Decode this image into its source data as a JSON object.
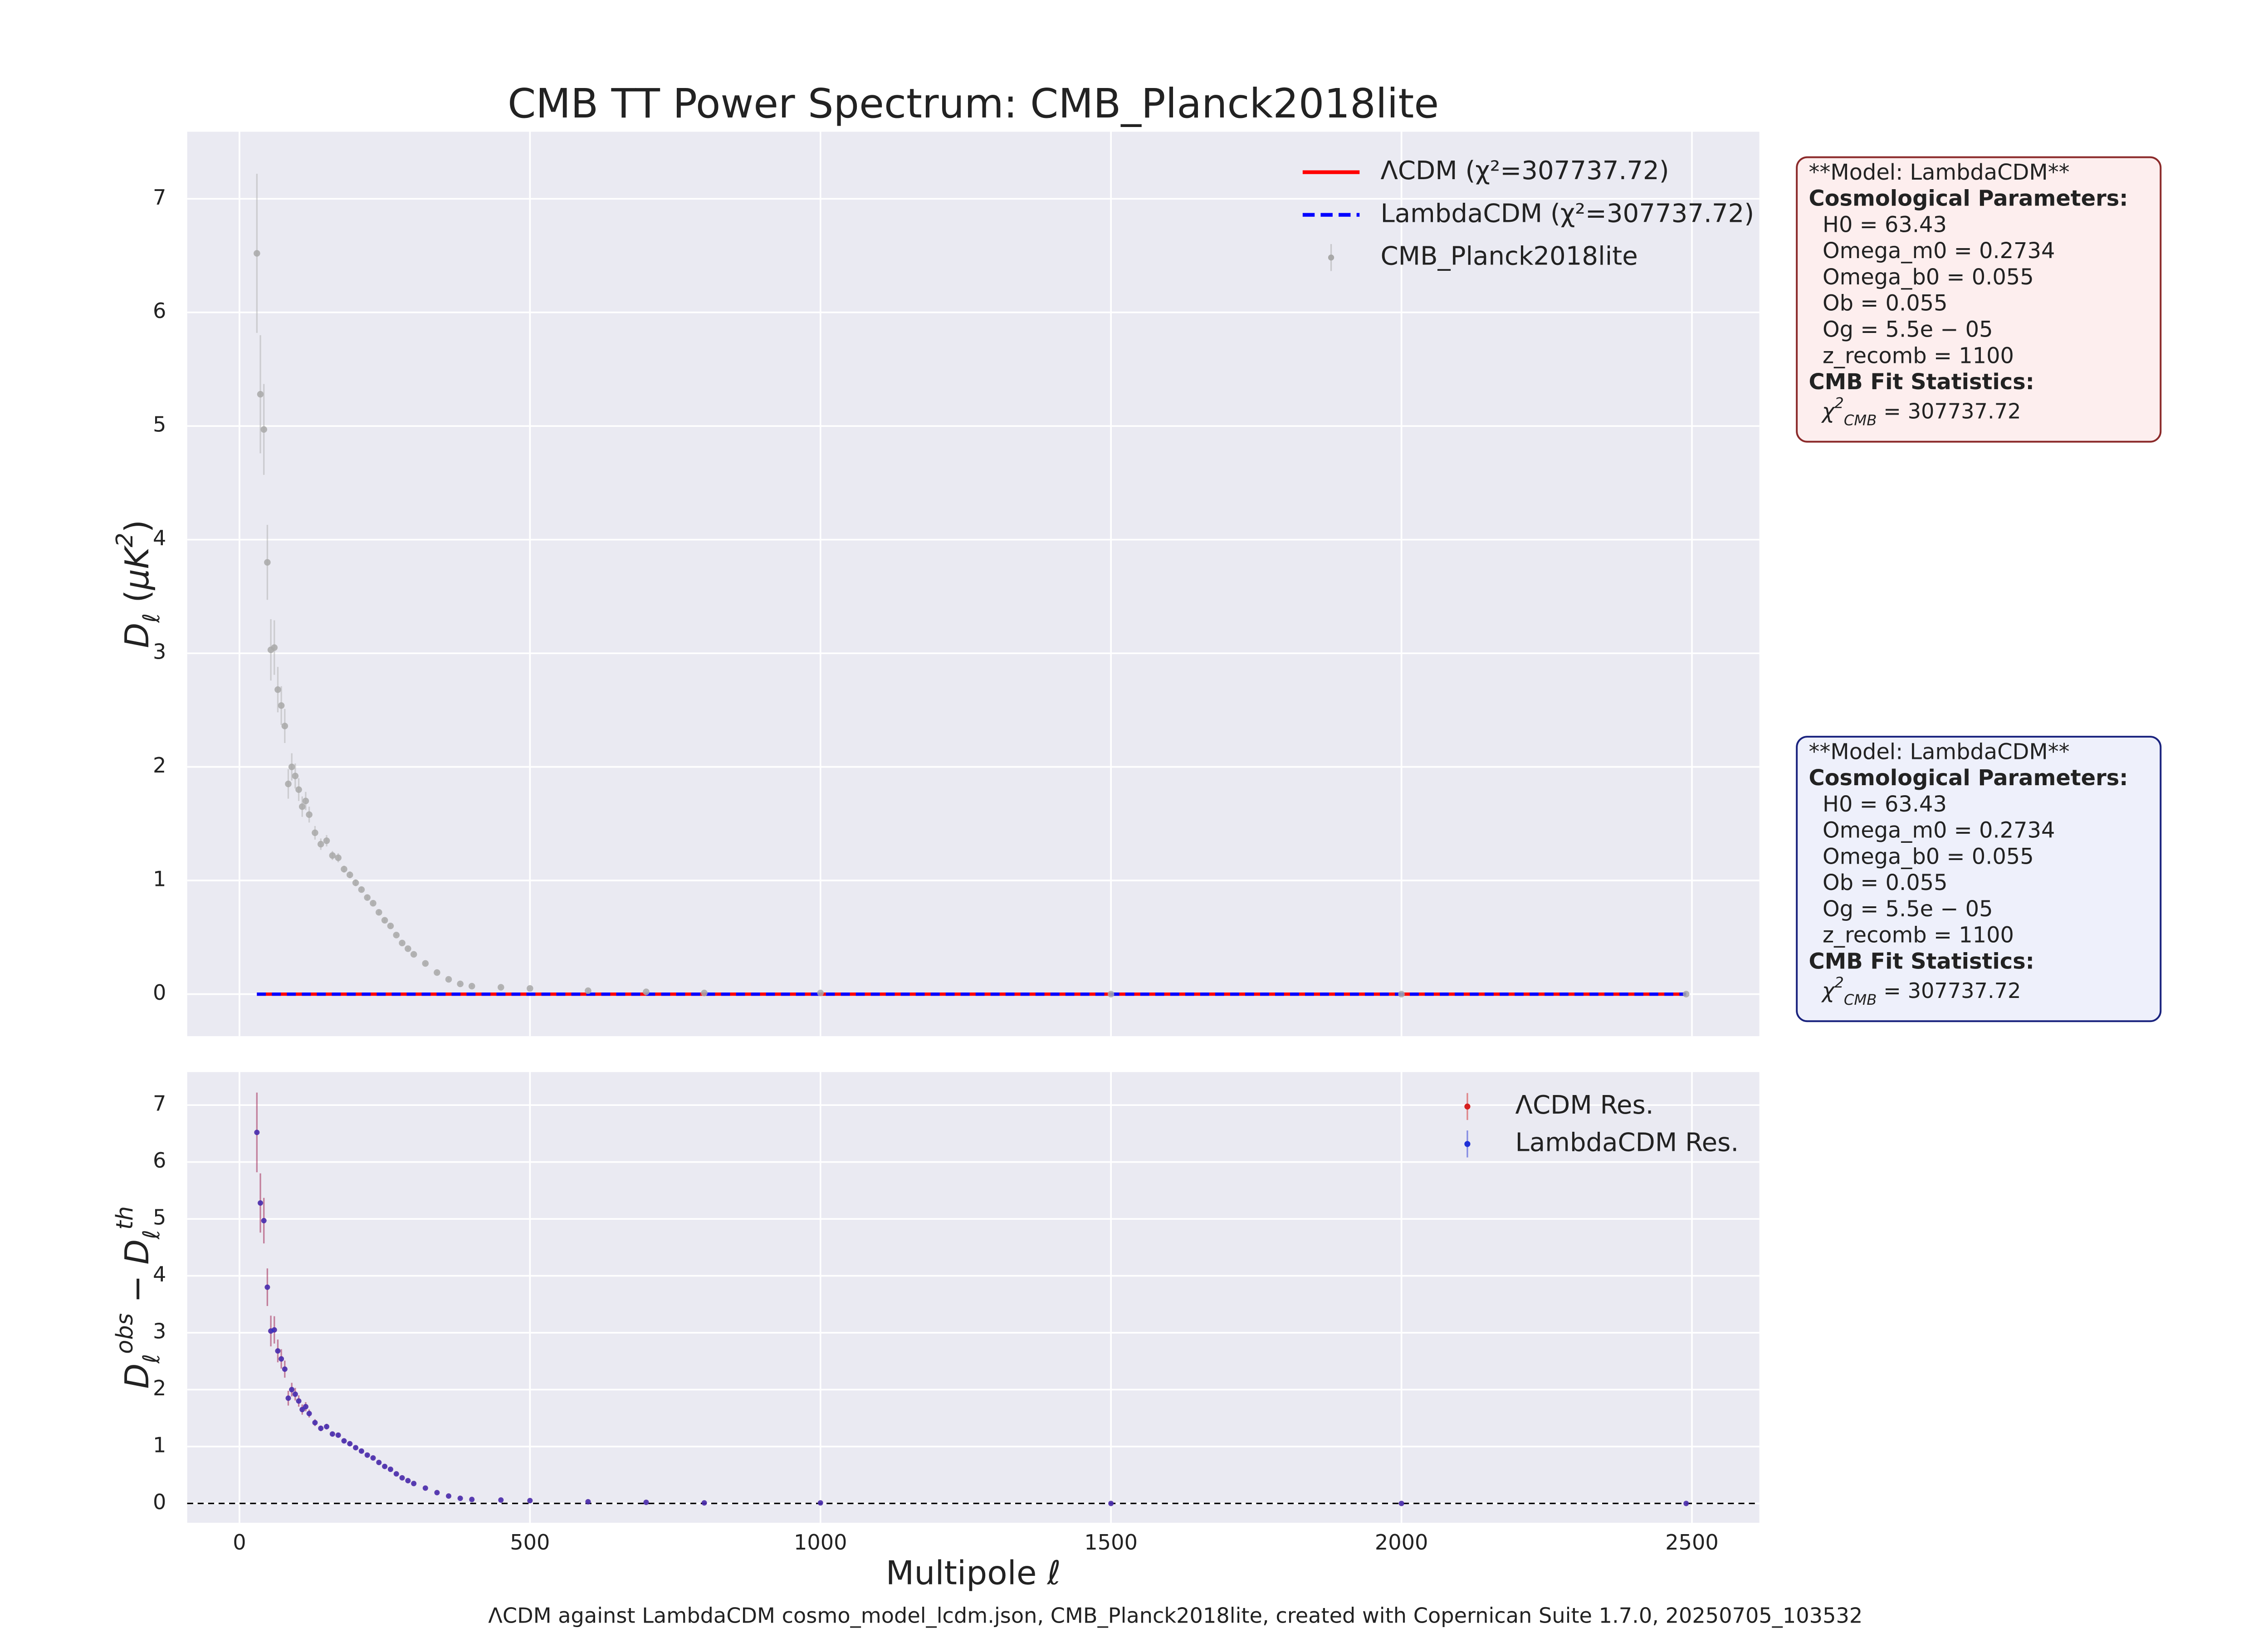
{
  "chart_data": [
    {
      "type": "errorbar",
      "title": "CMB TT Power Spectrum: CMB_Planck2018lite",
      "ylabel_parts": [
        {
          "text": "D",
          "style": "italic"
        },
        {
          "text": "ℓ",
          "style": "sub"
        },
        {
          "text": " (",
          "style": "normal"
        },
        {
          "text": "μK",
          "style": "italic"
        },
        {
          "text": "2",
          "style": "sup"
        },
        {
          "text": ")",
          "style": "normal"
        }
      ],
      "x": [
        30,
        36,
        42,
        48,
        54,
        60,
        66,
        72,
        78,
        84,
        90,
        96,
        102,
        108,
        114,
        120,
        130,
        140,
        150,
        160,
        170,
        180,
        190,
        200,
        210,
        220,
        230,
        240,
        250,
        260,
        270,
        280,
        290,
        300,
        320,
        340,
        360,
        380,
        400,
        450,
        500,
        600,
        700,
        800,
        1000,
        1500,
        2000,
        2490
      ],
      "xlim": [
        -90,
        2616
      ],
      "xticks": [
        0,
        500,
        1000,
        1500,
        2000,
        2500
      ],
      "show_xticklabels": false,
      "ylim": [
        -0.37,
        7.59
      ],
      "yticks": [
        0,
        1,
        2,
        3,
        4,
        5,
        6,
        7
      ],
      "grid": true,
      "legend": "upper right",
      "series": [
        {
          "name": "ΛCDM (χ²=307737.72)",
          "kind": "line",
          "linestyle": "solid",
          "color": "#ff0000",
          "values": [
            0,
            0,
            0,
            0,
            0,
            0,
            0,
            0,
            0,
            0,
            0,
            0,
            0,
            0,
            0,
            0,
            0,
            0,
            0,
            0,
            0,
            0,
            0,
            0,
            0,
            0,
            0,
            0,
            0,
            0,
            0,
            0,
            0,
            0,
            0,
            0,
            0,
            0,
            0,
            0,
            0,
            0,
            0,
            0,
            0,
            0,
            0,
            0
          ]
        },
        {
          "name": "LambdaCDM (χ²=307737.72)",
          "kind": "line",
          "linestyle": "dashed",
          "color": "#0000ff",
          "values": [
            0,
            0,
            0,
            0,
            0,
            0,
            0,
            0,
            0,
            0,
            0,
            0,
            0,
            0,
            0,
            0,
            0,
            0,
            0,
            0,
            0,
            0,
            0,
            0,
            0,
            0,
            0,
            0,
            0,
            0,
            0,
            0,
            0,
            0,
            0,
            0,
            0,
            0,
            0,
            0,
            0,
            0,
            0,
            0,
            0,
            0,
            0,
            0
          ]
        },
        {
          "name": "CMB_Planck2018lite",
          "kind": "errorbar",
          "color": "#a8a8a8",
          "values": [
            6.52,
            5.28,
            4.97,
            3.8,
            3.03,
            3.05,
            2.68,
            2.54,
            2.36,
            1.85,
            2.0,
            1.92,
            1.8,
            1.65,
            1.7,
            1.58,
            1.42,
            1.32,
            1.35,
            1.22,
            1.2,
            1.1,
            1.05,
            0.98,
            0.92,
            0.85,
            0.8,
            0.72,
            0.65,
            0.6,
            0.52,
            0.45,
            0.4,
            0.35,
            0.27,
            0.19,
            0.13,
            0.09,
            0.07,
            0.06,
            0.05,
            0.03,
            0.02,
            0.01,
            0.01,
            0,
            0,
            0
          ],
          "errors": [
            0.7,
            0.52,
            0.4,
            0.33,
            0.27,
            0.24,
            0.2,
            0.17,
            0.15,
            0.13,
            0.12,
            0.11,
            0.1,
            0.09,
            0.08,
            0.07,
            0.06,
            0.05,
            0.05,
            0.04,
            0.04,
            0.03,
            0.03,
            0.03,
            0.02,
            0.02,
            0.02,
            0.02,
            0.02,
            0.02,
            0.01,
            0.01,
            0.01,
            0.01,
            0.01,
            0.01,
            0.01,
            0.01,
            0.01,
            0.01,
            0.01,
            0.01,
            0.01,
            0.01,
            0.01,
            0.01,
            0.01,
            0.01
          ]
        }
      ],
      "annotations": [
        {
          "facecolor": "#fdeeee",
          "edgecolor": "#8b2a2a",
          "lines": [
            {
              "text": "**Model: LambdaCDM**"
            },
            {
              "text": "Cosmological Parameters:",
              "bold": true
            },
            {
              "text": "  H0 = 63.43"
            },
            {
              "text": "  Omega_m0 = 0.2734"
            },
            {
              "text": "  Omega_b0 = 0.055"
            },
            {
              "text": "  Ob = 0.055"
            },
            {
              "text": "  Og = 5.5e − 05"
            },
            {
              "text": "  z_recomb = 1100"
            },
            {
              "text": "CMB Fit Statistics:",
              "bold": true
            },
            {
              "parts": [
                {
                  "text": "  χ",
                  "style": "italic"
                },
                {
                  "text": "2",
                  "style": "sup"
                },
                {
                  "text": "CMB",
                  "style": "sub"
                },
                {
                  "text": " = 307737.72",
                  "style": "normal"
                }
              ]
            }
          ]
        },
        {
          "facecolor": "#eef0fb",
          "edgecolor": "#1a237e",
          "lines": [
            {
              "text": "**Model: LambdaCDM**"
            },
            {
              "text": "Cosmological Parameters:",
              "bold": true
            },
            {
              "text": "  H0 = 63.43"
            },
            {
              "text": "  Omega_m0 = 0.2734"
            },
            {
              "text": "  Omega_b0 = 0.055"
            },
            {
              "text": "  Ob = 0.055"
            },
            {
              "text": "  Og = 5.5e − 05"
            },
            {
              "text": "  z_recomb = 1100"
            },
            {
              "text": "CMB Fit Statistics:",
              "bold": true
            },
            {
              "parts": [
                {
                  "text": "  χ",
                  "style": "italic"
                },
                {
                  "text": "2",
                  "style": "sup"
                },
                {
                  "text": "CMB",
                  "style": "sub"
                },
                {
                  "text": " = 307737.72",
                  "style": "normal"
                }
              ]
            }
          ]
        }
      ]
    },
    {
      "type": "errorbar",
      "xlabel": "Multipole ℓ",
      "ylabel_parts": [
        {
          "text": "D",
          "style": "italic"
        },
        {
          "text": "ℓ",
          "style": "sub"
        },
        {
          "text": "obs",
          "style": "sup"
        },
        {
          "text": " − D",
          "style": "italic"
        },
        {
          "text": "ℓ",
          "style": "sub"
        },
        {
          "text": "th",
          "style": "sup"
        }
      ],
      "footer": "ΛCDM against LambdaCDM cosmo_model_lcdm.json, CMB_Planck2018lite, created with Copernican Suite 1.7.0, 20250705_103532",
      "x": [
        30,
        36,
        42,
        48,
        54,
        60,
        66,
        72,
        78,
        84,
        90,
        96,
        102,
        108,
        114,
        120,
        130,
        140,
        150,
        160,
        170,
        180,
        190,
        200,
        210,
        220,
        230,
        240,
        250,
        260,
        270,
        280,
        290,
        300,
        320,
        340,
        360,
        380,
        400,
        450,
        500,
        600,
        700,
        800,
        1000,
        1500,
        2000,
        2490
      ],
      "xlim": [
        -90,
        2616
      ],
      "xticks": [
        0,
        500,
        1000,
        1500,
        2000,
        2500
      ],
      "show_xticklabels": true,
      "ylim": [
        -0.34,
        7.58
      ],
      "yticks": [
        0,
        1,
        2,
        3,
        4,
        5,
        6,
        7
      ],
      "grid": true,
      "legend": "upper right",
      "hline": 0,
      "series": [
        {
          "name": "ΛCDM Res.",
          "kind": "errorbar",
          "color": "#d62020",
          "values": [
            6.52,
            5.28,
            4.97,
            3.8,
            3.03,
            3.05,
            2.68,
            2.54,
            2.36,
            1.85,
            2.0,
            1.92,
            1.8,
            1.65,
            1.7,
            1.58,
            1.42,
            1.32,
            1.35,
            1.22,
            1.2,
            1.1,
            1.05,
            0.98,
            0.92,
            0.85,
            0.8,
            0.72,
            0.65,
            0.6,
            0.52,
            0.45,
            0.4,
            0.35,
            0.27,
            0.19,
            0.13,
            0.09,
            0.07,
            0.06,
            0.05,
            0.03,
            0.02,
            0.01,
            0.01,
            0,
            0,
            0
          ],
          "errors": [
            0.7,
            0.52,
            0.4,
            0.33,
            0.27,
            0.24,
            0.2,
            0.17,
            0.15,
            0.13,
            0.12,
            0.11,
            0.1,
            0.09,
            0.08,
            0.07,
            0.06,
            0.05,
            0.05,
            0.04,
            0.04,
            0.03,
            0.03,
            0.03,
            0.02,
            0.02,
            0.02,
            0.02,
            0.02,
            0.02,
            0.01,
            0.01,
            0.01,
            0.01,
            0.01,
            0.01,
            0.01,
            0.01,
            0.01,
            0.01,
            0.01,
            0.01,
            0.01,
            0.01,
            0.01,
            0.01,
            0.01,
            0.01
          ]
        },
        {
          "name": "LambdaCDM Res.",
          "kind": "errorbar",
          "color": "#2030d6",
          "values": [
            6.52,
            5.28,
            4.97,
            3.8,
            3.03,
            3.05,
            2.68,
            2.54,
            2.36,
            1.85,
            2.0,
            1.92,
            1.8,
            1.65,
            1.7,
            1.58,
            1.42,
            1.32,
            1.35,
            1.22,
            1.2,
            1.1,
            1.05,
            0.98,
            0.92,
            0.85,
            0.8,
            0.72,
            0.65,
            0.6,
            0.52,
            0.45,
            0.4,
            0.35,
            0.27,
            0.19,
            0.13,
            0.09,
            0.07,
            0.06,
            0.05,
            0.03,
            0.02,
            0.01,
            0.01,
            0,
            0,
            0
          ],
          "errors": [
            0.7,
            0.52,
            0.4,
            0.33,
            0.27,
            0.24,
            0.2,
            0.17,
            0.15,
            0.13,
            0.12,
            0.11,
            0.1,
            0.09,
            0.08,
            0.07,
            0.06,
            0.05,
            0.05,
            0.04,
            0.04,
            0.03,
            0.03,
            0.03,
            0.02,
            0.02,
            0.02,
            0.02,
            0.02,
            0.02,
            0.01,
            0.01,
            0.01,
            0.01,
            0.01,
            0.01,
            0.01,
            0.01,
            0.01,
            0.01,
            0.01,
            0.01,
            0.01,
            0.01,
            0.01,
            0.01,
            0.01,
            0.01
          ]
        }
      ]
    }
  ]
}
